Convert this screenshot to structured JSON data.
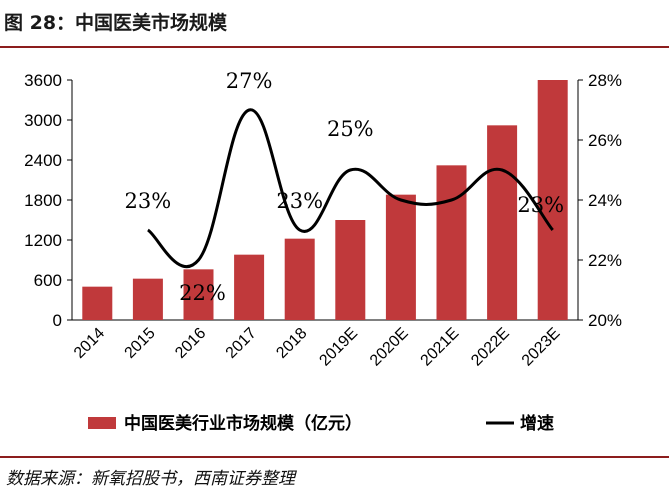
{
  "figure": {
    "title": "图 28：中国医美市场规模",
    "source": "数据来源：新氧招股书，西南证券整理"
  },
  "colors": {
    "bar": "#c0393b",
    "line": "#000000",
    "rule": "#8c1d1d",
    "axis": "#000000"
  },
  "chart_data": {
    "type": "bar",
    "categories": [
      "2014",
      "2015",
      "2016",
      "2017",
      "2018",
      "2019E",
      "2020E",
      "2021E",
      "2022E",
      "2023E"
    ],
    "series": [
      {
        "name": "中国医美行业市场规模（亿元）",
        "type": "bar",
        "axis": "left",
        "values": [
          500,
          620,
          760,
          980,
          1220,
          1500,
          1880,
          2320,
          2920,
          3600
        ]
      },
      {
        "name": "增速",
        "type": "line",
        "axis": "right",
        "values": [
          null,
          23,
          22,
          27,
          23,
          25,
          24,
          24,
          25,
          23
        ]
      }
    ],
    "left_axis": {
      "ylim": [
        0,
        3600
      ],
      "ticks": [
        "0",
        "600",
        "1200",
        "1800",
        "2400",
        "3000",
        "3600"
      ]
    },
    "right_axis": {
      "ylim": [
        20,
        28
      ],
      "ticks": [
        "20%",
        "22%",
        "24%",
        "26%",
        "28%"
      ]
    },
    "data_labels": [
      {
        "index": 1,
        "text": "23%"
      },
      {
        "index": 2,
        "text": "22%"
      },
      {
        "index": 3,
        "text": "27%"
      },
      {
        "index": 4,
        "text": "23%"
      },
      {
        "index": 5,
        "text": "25%"
      },
      {
        "index": 9,
        "text": "23%"
      }
    ],
    "legend_position": "bottom"
  }
}
